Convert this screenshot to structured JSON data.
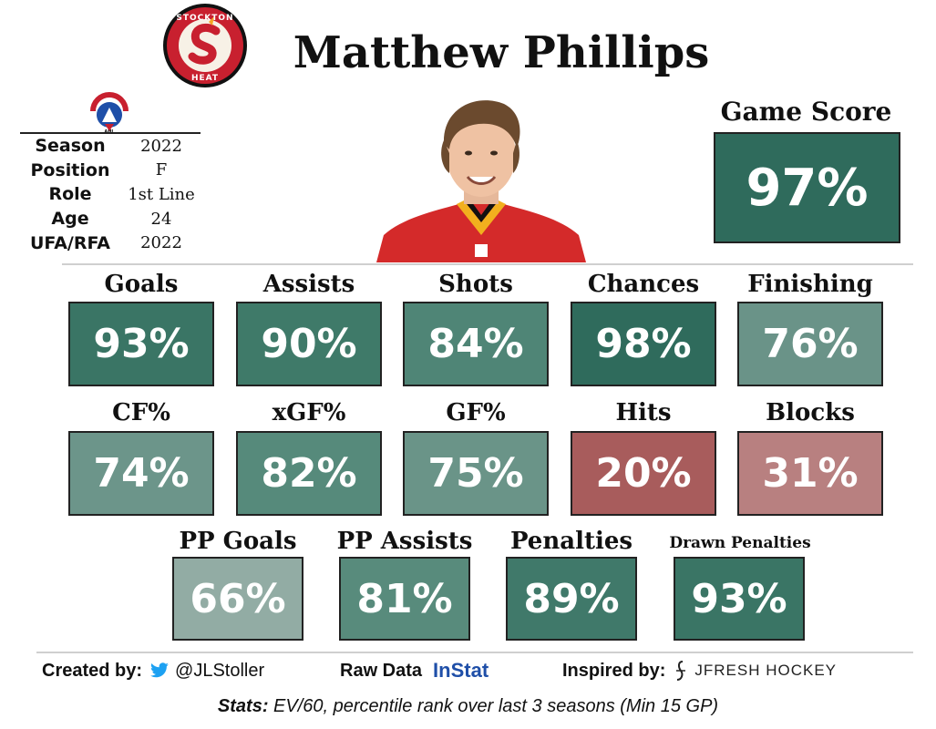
{
  "header": {
    "player_name": "Matthew Phillips"
  },
  "team_logo": {
    "text_top": "STOCKTON",
    "text_bottom": "HEAT",
    "letter": "S"
  },
  "league_logo": {
    "text": "AMERICAN HOCKEY LEAGUE",
    "abbr": "AHL"
  },
  "info": [
    {
      "label": "Season",
      "value": "2022"
    },
    {
      "label": "Position",
      "value": "F"
    },
    {
      "label": "Role",
      "value": "1st Line"
    },
    {
      "label": "Age",
      "value": "24"
    },
    {
      "label": "UFA/RFA",
      "value": "2022"
    }
  ],
  "game_score": {
    "label": "Game Score",
    "value": "97%",
    "color": "#2f6b5c"
  },
  "stats_row1": [
    {
      "label": "Goals",
      "value": "93%",
      "color": "#3a7565"
    },
    {
      "label": "Assists",
      "value": "90%",
      "color": "#3f7a69"
    },
    {
      "label": "Shots",
      "value": "84%",
      "color": "#4f8576"
    },
    {
      "label": "Chances",
      "value": "98%",
      "color": "#2f6b5c"
    },
    {
      "label": "Finishing",
      "value": "76%",
      "color": "#6a9388"
    }
  ],
  "stats_row2": [
    {
      "label": "CF%",
      "value": "74%",
      "color": "#6c958a"
    },
    {
      "label": "xGF%",
      "value": "82%",
      "color": "#568a7b"
    },
    {
      "label": "GF%",
      "value": "75%",
      "color": "#6a9488"
    },
    {
      "label": "Hits",
      "value": "20%",
      "color": "#a85c5c"
    },
    {
      "label": "Blocks",
      "value": "31%",
      "color": "#b88080"
    }
  ],
  "stats_row3": [
    {
      "label": "PP Goals",
      "value": "66%",
      "color": "#92aca4"
    },
    {
      "label": "PP Assists",
      "value": "81%",
      "color": "#588b7c"
    },
    {
      "label": "Penalties",
      "value": "89%",
      "color": "#40796a"
    },
    {
      "label": "Drawn Penalties",
      "value": "93%",
      "color": "#3a7565"
    }
  ],
  "footer": {
    "created_by_label": "Created by:",
    "twitter_handle": "@JLStoller",
    "raw_data_label": "Raw Data",
    "raw_data_source": "InStat",
    "inspired_label": "Inspired by:",
    "inspired_source": "JFRESH HOCKEY",
    "note_bold": "Stats:",
    "note_text": " EV/60, percentile rank over last 3 seasons (Min 15 GP)"
  }
}
